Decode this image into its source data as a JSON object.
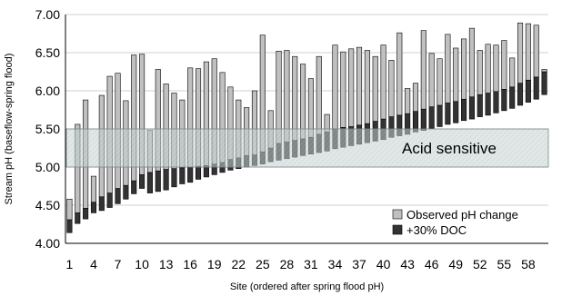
{
  "chart_data": {
    "type": "bar",
    "xlabel": "Site (ordered after spring flood pH)",
    "ylabel": "Stream pH (baseflow-spring flood)",
    "ylim": [
      4.0,
      7.0
    ],
    "yticks": [
      "4.00",
      "4.50",
      "5.00",
      "5.50",
      "6.00",
      "6.50",
      "7.00"
    ],
    "xtick_labels": [
      "1",
      "4",
      "7",
      "10",
      "13",
      "16",
      "19",
      "22",
      "25",
      "28",
      "31",
      "34",
      "37",
      "40",
      "43",
      "46",
      "49",
      "52",
      "55",
      "58"
    ],
    "band": {
      "label": "Acid sensitive",
      "from": 5.0,
      "to": 5.5
    },
    "legend": {
      "position": "bottom-right"
    },
    "colors": {
      "observed": "#c0c0c0",
      "doc": "#333333",
      "band": "#b9c8c8"
    },
    "series": [
      {
        "name": "Observed pH change",
        "low": [
          4.31,
          4.4,
          4.46,
          4.54,
          4.61,
          4.66,
          4.72,
          4.76,
          4.82,
          4.9,
          4.93,
          4.95,
          4.97,
          4.98,
          4.99,
          5.0,
          5.01,
          5.02,
          5.04,
          5.06,
          5.1,
          5.12,
          5.15,
          5.16,
          5.2,
          5.25,
          5.31,
          5.33,
          5.35,
          5.37,
          5.39,
          5.43,
          5.46,
          5.5,
          5.52,
          5.53,
          5.55,
          5.57,
          5.6,
          5.63,
          5.66,
          5.68,
          5.7,
          5.73,
          5.76,
          5.79,
          5.81,
          5.84,
          5.86,
          5.89,
          5.92,
          5.95,
          5.97,
          5.99,
          6.02,
          6.05,
          6.1,
          6.14,
          6.18,
          6.25
        ],
        "high": [
          4.58,
          5.56,
          5.88,
          4.88,
          5.94,
          6.19,
          6.23,
          5.87,
          6.47,
          6.48,
          5.48,
          6.28,
          6.09,
          5.97,
          5.88,
          6.3,
          6.29,
          6.38,
          6.42,
          6.24,
          6.05,
          5.88,
          5.78,
          6.0,
          6.73,
          5.74,
          6.52,
          6.53,
          6.45,
          6.35,
          6.16,
          6.45,
          5.69,
          6.6,
          6.51,
          6.55,
          6.57,
          6.53,
          6.45,
          6.6,
          6.4,
          6.76,
          6.03,
          6.1,
          6.79,
          6.49,
          6.42,
          6.74,
          6.56,
          6.68,
          6.82,
          6.53,
          6.61,
          6.6,
          6.66,
          6.43,
          6.89,
          6.88,
          6.86,
          6.28
        ]
      },
      {
        "name": "+30% DOC",
        "low": [
          4.14,
          4.26,
          4.32,
          4.4,
          4.43,
          4.47,
          4.52,
          4.58,
          4.65,
          4.72,
          4.66,
          4.68,
          4.7,
          4.74,
          4.78,
          4.8,
          4.84,
          4.87,
          4.9,
          4.93,
          4.96,
          4.98,
          5.0,
          5.02,
          5.04,
          5.07,
          5.09,
          5.11,
          5.13,
          5.15,
          5.17,
          5.19,
          5.21,
          5.24,
          5.26,
          5.28,
          5.3,
          5.32,
          5.34,
          5.36,
          5.39,
          5.41,
          5.43,
          5.46,
          5.48,
          5.51,
          5.53,
          5.56,
          5.58,
          5.61,
          5.63,
          5.66,
          5.68,
          5.71,
          5.74,
          5.77,
          5.81,
          5.85,
          5.89,
          5.95
        ],
        "high": [
          4.31,
          4.4,
          4.46,
          4.54,
          4.61,
          4.66,
          4.72,
          4.76,
          4.82,
          4.9,
          4.93,
          4.95,
          4.97,
          4.98,
          4.99,
          5.0,
          5.01,
          5.02,
          5.04,
          5.06,
          5.1,
          5.12,
          5.15,
          5.16,
          5.2,
          5.25,
          5.31,
          5.33,
          5.35,
          5.37,
          5.39,
          5.43,
          5.46,
          5.5,
          5.52,
          5.53,
          5.55,
          5.57,
          5.6,
          5.63,
          5.66,
          5.68,
          5.7,
          5.73,
          5.76,
          5.79,
          5.81,
          5.84,
          5.86,
          5.89,
          5.92,
          5.95,
          5.97,
          5.99,
          6.02,
          6.05,
          6.1,
          6.14,
          6.18,
          6.25
        ]
      }
    ]
  }
}
